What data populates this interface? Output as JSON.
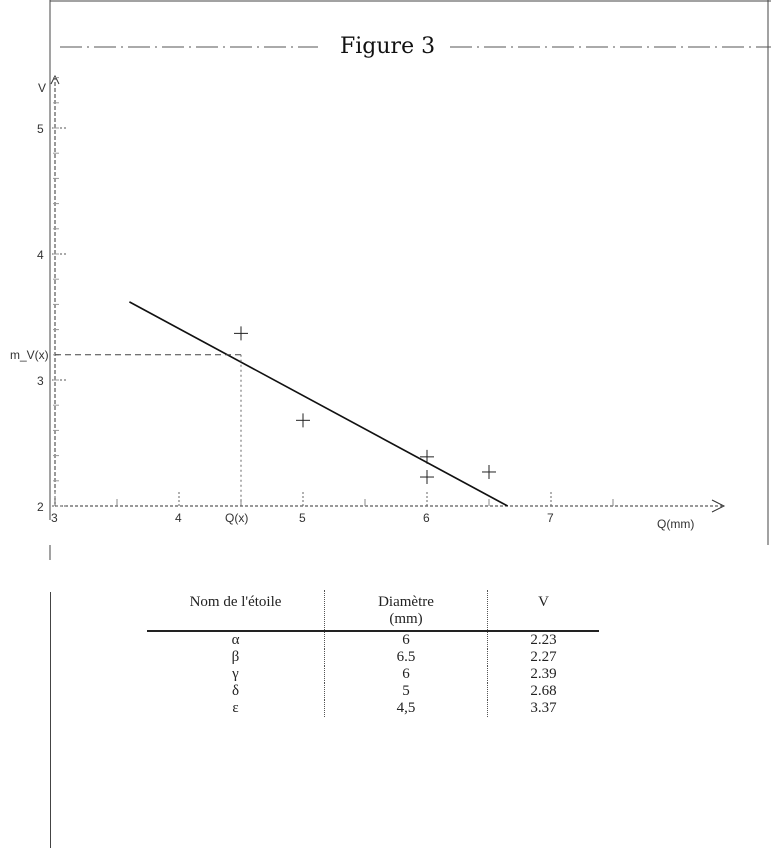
{
  "title": "Figure 3",
  "chart_data": {
    "type": "scatter",
    "x_ticks": [
      "3",
      "4",
      "5",
      "6",
      "7"
    ],
    "y_ticks": [
      "2",
      "3",
      "4",
      "5"
    ],
    "ylabel": "V",
    "xlabel": "Q(mm)",
    "x_marker_label": "Q(x)",
    "y_marker_label": "m_V(x)",
    "xlim": [
      3,
      7.6
    ],
    "ylim": [
      2,
      5.6
    ],
    "points": [
      {
        "x": 6,
        "y": 2.23
      },
      {
        "x": 6.5,
        "y": 2.27
      },
      {
        "x": 6,
        "y": 2.39
      },
      {
        "x": 5,
        "y": 2.68
      },
      {
        "x": 4.5,
        "y": 3.37
      }
    ],
    "fit_line": [
      {
        "x": 3.6,
        "y": 3.62
      },
      {
        "x": 6.65,
        "y": 2.0
      }
    ],
    "marker": {
      "x": 4.5,
      "y": 3.2
    },
    "grid": false
  },
  "table": {
    "headers": [
      "Nom de l'étoile",
      "Diamètre\n(mm)",
      "V"
    ],
    "rows": [
      [
        "α",
        "6",
        "2.23"
      ],
      [
        "β",
        "6.5",
        "2.27"
      ],
      [
        "γ",
        "6",
        "2.39"
      ],
      [
        "δ",
        "5",
        "2.68"
      ],
      [
        "ε",
        "4,5",
        "3.37"
      ]
    ]
  }
}
